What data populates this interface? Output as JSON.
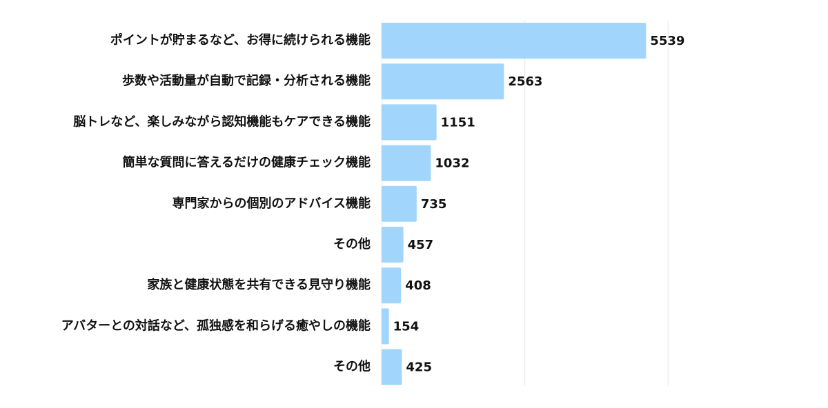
{
  "chart_data": {
    "type": "bar",
    "orientation": "horizontal",
    "categories": [
      "ポイントが貯まるなど、お得に続けられる機能",
      "歩数や活動量が自動で記録・分析される機能",
      "脳トレなど、楽しみながら認知機能もケアできる機能",
      "簡単な質問に答えるだけの健康チェック機能",
      "専門家からの個別のアドバイス機能",
      "その他",
      "家族と健康状態を共有できる見守り機能",
      "アバターとの対話など、孤独感を和らげる癒やしの機能",
      "その他"
    ],
    "values": [
      5539,
      2563,
      1151,
      1032,
      735,
      457,
      408,
      154,
      425
    ],
    "value_labels": [
      "5539",
      "2563",
      "1151",
      "1032",
      "735",
      "457",
      "408",
      "154",
      "425"
    ],
    "xlim": [
      0,
      6000
    ],
    "grid": true,
    "legend": "none",
    "bar_color": "#a1d5fb"
  }
}
